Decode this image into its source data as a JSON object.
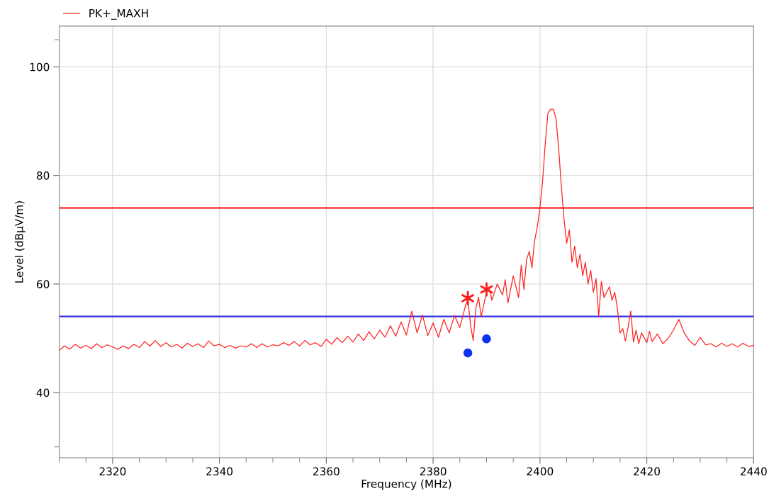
{
  "chart_data": {
    "type": "line",
    "xlabel": "Frequency (MHz)",
    "ylabel": "Level (dBµV/m)",
    "xlim": [
      2310,
      2440
    ],
    "ylim": [
      28,
      107.5
    ],
    "xticks": [
      {
        "value": 2310,
        "label": null
      },
      {
        "value": 2315,
        "label": null
      },
      2320,
      {
        "value": 2325,
        "label": null
      },
      {
        "value": 2330,
        "label": null
      },
      {
        "value": 2335,
        "label": null
      },
      2340,
      {
        "value": 2345,
        "label": null
      },
      {
        "value": 2350,
        "label": null
      },
      {
        "value": 2355,
        "label": null
      },
      2360,
      {
        "value": 2365,
        "label": null
      },
      {
        "value": 2370,
        "label": null
      },
      {
        "value": 2375,
        "label": null
      },
      2380,
      {
        "value": 2385,
        "label": null
      },
      {
        "value": 2390,
        "label": null
      },
      {
        "value": 2395,
        "label": null
      },
      2400,
      {
        "value": 2405,
        "label": null
      },
      {
        "value": 2410,
        "label": null
      },
      {
        "value": 2415,
        "label": null
      },
      2420,
      {
        "value": 2425,
        "label": null
      },
      {
        "value": 2430,
        "label": null
      },
      {
        "value": 2435,
        "label": null
      },
      2440
    ],
    "yticks": [
      {
        "value": 30,
        "label": null
      },
      40,
      60,
      80,
      100,
      {
        "value": 105,
        "label": null
      }
    ],
    "grid": true,
    "legend": "top left",
    "ref_lines": [
      {
        "axis": "y",
        "value": 74,
        "color": "#ff3b3b",
        "line_style": "solid"
      },
      {
        "axis": "y",
        "value": 54,
        "color": "#3a3ae8",
        "line_style": "solid"
      }
    ],
    "series": [
      {
        "name": "PK+_MAXH",
        "color": "#ff2020",
        "marker": "none",
        "line_style": "solid",
        "x": [
          2310,
          2311,
          2312,
          2313,
          2314,
          2315,
          2316,
          2317,
          2318,
          2319,
          2320,
          2321,
          2322,
          2323,
          2324,
          2325,
          2326,
          2327,
          2328,
          2329,
          2330,
          2331,
          2332,
          2333,
          2334,
          2335,
          2336,
          2337,
          2338,
          2339,
          2340,
          2341,
          2342,
          2343,
          2344,
          2345,
          2346,
          2347,
          2348,
          2349,
          2350,
          2351,
          2352,
          2353,
          2354,
          2355,
          2356,
          2357,
          2358,
          2359,
          2360,
          2361,
          2362,
          2363,
          2364,
          2365,
          2366,
          2367,
          2368,
          2369,
          2370,
          2371,
          2372,
          2373,
          2374,
          2375,
          2376,
          2377,
          2378,
          2379,
          2380,
          2381,
          2382,
          2383,
          2384,
          2385,
          2386,
          2386.5,
          2387,
          2387.5,
          2388,
          2388.5,
          2389,
          2390,
          2390.5,
          2391,
          2392,
          2393,
          2393.5,
          2394,
          2395,
          2396,
          2396.5,
          2397,
          2397.5,
          2398,
          2398.5,
          2399,
          2399.5,
          2400,
          2400.5,
          2401,
          2401.5,
          2402,
          2402.5,
          2403,
          2403.5,
          2404,
          2404.5,
          2405,
          2405.5,
          2406,
          2406.5,
          2407,
          2407.5,
          2408,
          2408.5,
          2409,
          2409.5,
          2410,
          2410.5,
          2411,
          2411.5,
          2412,
          2413,
          2413.5,
          2414,
          2414.5,
          2415,
          2415.5,
          2416,
          2416.5,
          2417,
          2417.5,
          2418,
          2418.5,
          2419,
          2420,
          2420.5,
          2421,
          2422,
          2423,
          2424,
          2425,
          2426,
          2427,
          2428,
          2429,
          2430,
          2431,
          2432,
          2433,
          2434,
          2435,
          2436,
          2437,
          2438,
          2439,
          2440
        ],
        "values": [
          47.8,
          48.6,
          48.0,
          48.9,
          48.2,
          48.7,
          48.1,
          49.0,
          48.3,
          48.8,
          48.4,
          48.0,
          48.6,
          48.1,
          48.9,
          48.3,
          49.4,
          48.6,
          49.6,
          48.5,
          49.2,
          48.4,
          48.9,
          48.2,
          49.1,
          48.5,
          49.0,
          48.3,
          49.5,
          48.6,
          48.9,
          48.3,
          48.7,
          48.2,
          48.6,
          48.4,
          49.0,
          48.3,
          49.0,
          48.4,
          48.8,
          48.6,
          49.2,
          48.7,
          49.4,
          48.6,
          49.6,
          48.8,
          49.2,
          48.5,
          49.8,
          48.9,
          50.1,
          49.2,
          50.4,
          49.3,
          50.8,
          49.6,
          51.2,
          49.9,
          51.5,
          50.2,
          52.3,
          50.4,
          53.0,
          50.6,
          55.0,
          51.0,
          54.3,
          50.5,
          52.8,
          50.2,
          53.5,
          51.0,
          54.2,
          52.0,
          55.8,
          57.2,
          52.5,
          49.6,
          55.5,
          57.6,
          54.0,
          58.5,
          59.5,
          57.0,
          60.0,
          58.0,
          60.8,
          56.5,
          61.5,
          57.5,
          63.5,
          59.0,
          64.5,
          66.0,
          63.0,
          68.0,
          70.5,
          74.0,
          79.0,
          86.0,
          91.5,
          92.2,
          92.2,
          90.5,
          85.0,
          78.0,
          72.0,
          67.5,
          70.0,
          64.0,
          67.0,
          63.0,
          65.5,
          61.5,
          64.0,
          60.0,
          62.5,
          58.5,
          61.0,
          54.0,
          60.5,
          57.5,
          59.5,
          57.0,
          58.5,
          55.5,
          51.0,
          51.8,
          49.5,
          52.0,
          55.0,
          49.3,
          51.5,
          49.0,
          51.0,
          49.2,
          51.3,
          49.4,
          50.8,
          49.0,
          50.0,
          51.5,
          53.5,
          51.0,
          49.5,
          48.7,
          50.2,
          48.8,
          49.0,
          48.4,
          49.1,
          48.5,
          49.0,
          48.4,
          49.1,
          48.5,
          48.7
        ]
      },
      {
        "type": "scatter",
        "color": "#ff1a1a",
        "marker": "cross",
        "x": [
          2386.5,
          2390
        ],
        "values": [
          57.4,
          59.0
        ]
      },
      {
        "type": "scatter",
        "color": "#0a32f0",
        "marker": "circle",
        "x": [
          2386.5,
          2390
        ],
        "values": [
          47.3,
          49.9
        ]
      }
    ]
  }
}
